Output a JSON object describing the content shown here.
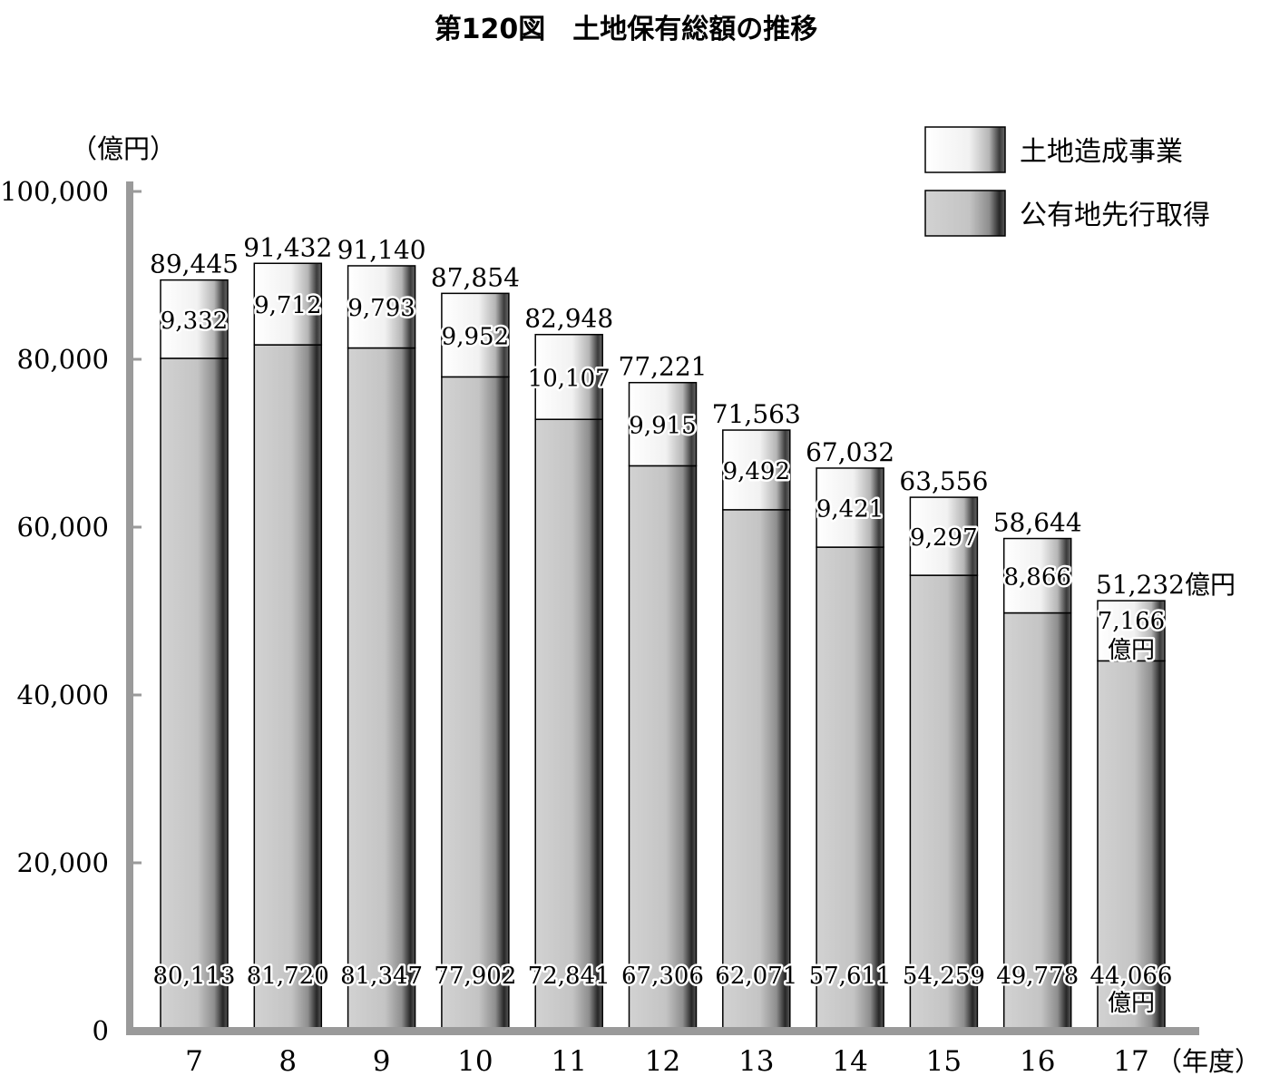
{
  "title": "第120図　土地保有総額の推移",
  "colors": {
    "top_segment": "#f4f4f4",
    "bottom_segment": "#c8c8c8",
    "axis": "#9a9a9a"
  },
  "chart_data": {
    "type": "bar",
    "stacked": true,
    "title": "第120図　土地保有総額の推移",
    "ylabel": "（億円）",
    "xlabel": "（年度）",
    "ylim": [
      0,
      100000
    ],
    "yticks": [
      "0",
      "20,000",
      "40,000",
      "60,000",
      "80,000",
      "100,000"
    ],
    "categories": [
      "7",
      "8",
      "9",
      "10",
      "11",
      "12",
      "13",
      "14",
      "15",
      "16",
      "17"
    ],
    "series": [
      {
        "name": "公有地先行取得",
        "values": [
          80113,
          81720,
          81347,
          77902,
          72841,
          67306,
          62071,
          57611,
          54259,
          49778,
          44066
        ],
        "labels": [
          "80,113",
          "81,720",
          "81,347",
          "77,902",
          "72,841",
          "67,306",
          "62,071",
          "57,611",
          "54,259",
          "49,778",
          "44,066"
        ]
      },
      {
        "name": "土地造成事業",
        "values": [
          9332,
          9712,
          9793,
          9952,
          10107,
          9915,
          9492,
          9421,
          9297,
          8866,
          7166
        ],
        "labels": [
          "9,332",
          "9,712",
          "9,793",
          "9,952",
          "10,107",
          "9,915",
          "9,492",
          "9,421",
          "9,297",
          "8,866",
          "7,166"
        ]
      }
    ],
    "totals": [
      89445,
      91432,
      91140,
      87854,
      82948,
      77221,
      71563,
      67032,
      63556,
      58644,
      51232
    ],
    "total_labels": [
      "89,445",
      "91,432",
      "91,140",
      "87,854",
      "82,948",
      "77,221",
      "71,563",
      "67,032",
      "63,556",
      "58,644",
      "51,232億円"
    ],
    "last_bar_unit": "億円",
    "legend": [
      "土地造成事業",
      "公有地先行取得"
    ],
    "legend_position": "top-right",
    "grid": false
  }
}
